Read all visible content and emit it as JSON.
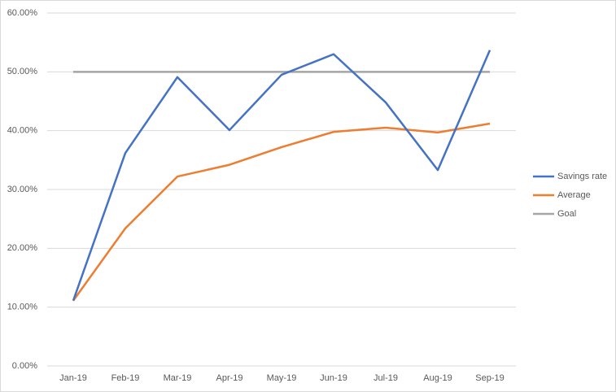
{
  "chart_data": {
    "type": "line",
    "categories": [
      "Jan-19",
      "Feb-19",
      "Mar-19",
      "Apr-19",
      "May-19",
      "Jun-19",
      "Jul-19",
      "Aug-19",
      "Sep-19"
    ],
    "series": [
      {
        "name": "Savings rate",
        "color": "#4472c4",
        "values": [
          11.1,
          36.2,
          49.1,
          40.1,
          49.5,
          53.0,
          44.8,
          33.3,
          53.7
        ]
      },
      {
        "name": "Average",
        "color": "#ed7d31",
        "values": [
          11.1,
          23.4,
          32.2,
          34.2,
          37.2,
          39.8,
          40.5,
          39.7,
          41.2
        ]
      },
      {
        "name": "Goal",
        "color": "#a5a5a5",
        "values": [
          50,
          50,
          50,
          50,
          50,
          50,
          50,
          50,
          50
        ]
      }
    ],
    "ylim": [
      0,
      60
    ],
    "yticks": [
      {
        "value": 0,
        "label": "0.00%"
      },
      {
        "value": 10,
        "label": "10.00%"
      },
      {
        "value": 20,
        "label": "20.00%"
      },
      {
        "value": 30,
        "label": "30.00%"
      },
      {
        "value": 40,
        "label": "40.00%"
      },
      {
        "value": 50,
        "label": "50.00%"
      },
      {
        "value": 60,
        "label": "60.00%"
      }
    ],
    "grid": true,
    "legend": "right"
  }
}
